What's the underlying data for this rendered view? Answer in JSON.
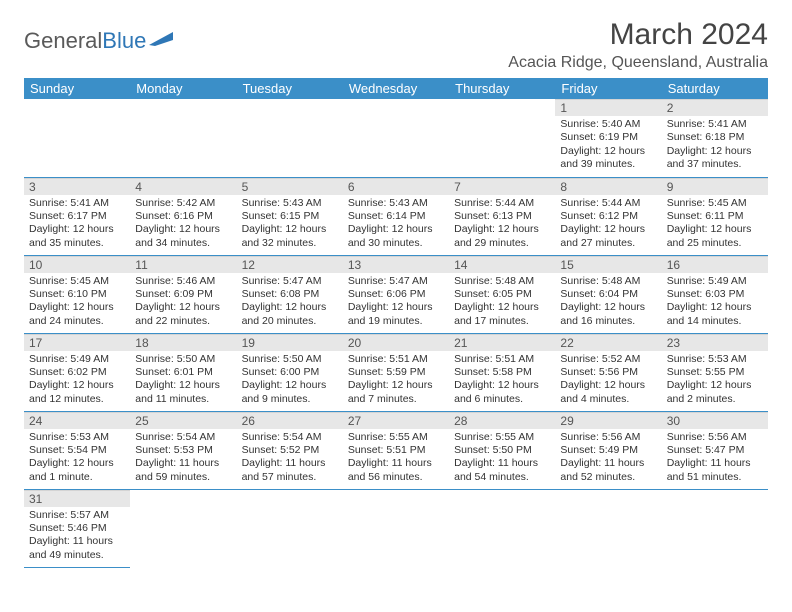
{
  "logo": {
    "text1": "General",
    "text2": "Blue"
  },
  "title": "March 2024",
  "location": "Acacia Ridge, Queensland, Australia",
  "colors": {
    "header_bg": "#3b8fc8",
    "header_fg": "#ffffff",
    "daynum_bg": "#e7e7e7",
    "row_border": "#3b8fc8",
    "logo_gray": "#5a5a5a",
    "logo_blue": "#2f77b6",
    "text": "#333333"
  },
  "day_headers": [
    "Sunday",
    "Monday",
    "Tuesday",
    "Wednesday",
    "Thursday",
    "Friday",
    "Saturday"
  ],
  "weeks": [
    [
      null,
      null,
      null,
      null,
      null,
      {
        "n": "1",
        "sunrise": "5:40 AM",
        "sunset": "6:19 PM",
        "daylight": "12 hours and 39 minutes."
      },
      {
        "n": "2",
        "sunrise": "5:41 AM",
        "sunset": "6:18 PM",
        "daylight": "12 hours and 37 minutes."
      }
    ],
    [
      {
        "n": "3",
        "sunrise": "5:41 AM",
        "sunset": "6:17 PM",
        "daylight": "12 hours and 35 minutes."
      },
      {
        "n": "4",
        "sunrise": "5:42 AM",
        "sunset": "6:16 PM",
        "daylight": "12 hours and 34 minutes."
      },
      {
        "n": "5",
        "sunrise": "5:43 AM",
        "sunset": "6:15 PM",
        "daylight": "12 hours and 32 minutes."
      },
      {
        "n": "6",
        "sunrise": "5:43 AM",
        "sunset": "6:14 PM",
        "daylight": "12 hours and 30 minutes."
      },
      {
        "n": "7",
        "sunrise": "5:44 AM",
        "sunset": "6:13 PM",
        "daylight": "12 hours and 29 minutes."
      },
      {
        "n": "8",
        "sunrise": "5:44 AM",
        "sunset": "6:12 PM",
        "daylight": "12 hours and 27 minutes."
      },
      {
        "n": "9",
        "sunrise": "5:45 AM",
        "sunset": "6:11 PM",
        "daylight": "12 hours and 25 minutes."
      }
    ],
    [
      {
        "n": "10",
        "sunrise": "5:45 AM",
        "sunset": "6:10 PM",
        "daylight": "12 hours and 24 minutes."
      },
      {
        "n": "11",
        "sunrise": "5:46 AM",
        "sunset": "6:09 PM",
        "daylight": "12 hours and 22 minutes."
      },
      {
        "n": "12",
        "sunrise": "5:47 AM",
        "sunset": "6:08 PM",
        "daylight": "12 hours and 20 minutes."
      },
      {
        "n": "13",
        "sunrise": "5:47 AM",
        "sunset": "6:06 PM",
        "daylight": "12 hours and 19 minutes."
      },
      {
        "n": "14",
        "sunrise": "5:48 AM",
        "sunset": "6:05 PM",
        "daylight": "12 hours and 17 minutes."
      },
      {
        "n": "15",
        "sunrise": "5:48 AM",
        "sunset": "6:04 PM",
        "daylight": "12 hours and 16 minutes."
      },
      {
        "n": "16",
        "sunrise": "5:49 AM",
        "sunset": "6:03 PM",
        "daylight": "12 hours and 14 minutes."
      }
    ],
    [
      {
        "n": "17",
        "sunrise": "5:49 AM",
        "sunset": "6:02 PM",
        "daylight": "12 hours and 12 minutes."
      },
      {
        "n": "18",
        "sunrise": "5:50 AM",
        "sunset": "6:01 PM",
        "daylight": "12 hours and 11 minutes."
      },
      {
        "n": "19",
        "sunrise": "5:50 AM",
        "sunset": "6:00 PM",
        "daylight": "12 hours and 9 minutes."
      },
      {
        "n": "20",
        "sunrise": "5:51 AM",
        "sunset": "5:59 PM",
        "daylight": "12 hours and 7 minutes."
      },
      {
        "n": "21",
        "sunrise": "5:51 AM",
        "sunset": "5:58 PM",
        "daylight": "12 hours and 6 minutes."
      },
      {
        "n": "22",
        "sunrise": "5:52 AM",
        "sunset": "5:56 PM",
        "daylight": "12 hours and 4 minutes."
      },
      {
        "n": "23",
        "sunrise": "5:53 AM",
        "sunset": "5:55 PM",
        "daylight": "12 hours and 2 minutes."
      }
    ],
    [
      {
        "n": "24",
        "sunrise": "5:53 AM",
        "sunset": "5:54 PM",
        "daylight": "12 hours and 1 minute."
      },
      {
        "n": "25",
        "sunrise": "5:54 AM",
        "sunset": "5:53 PM",
        "daylight": "11 hours and 59 minutes."
      },
      {
        "n": "26",
        "sunrise": "5:54 AM",
        "sunset": "5:52 PM",
        "daylight": "11 hours and 57 minutes."
      },
      {
        "n": "27",
        "sunrise": "5:55 AM",
        "sunset": "5:51 PM",
        "daylight": "11 hours and 56 minutes."
      },
      {
        "n": "28",
        "sunrise": "5:55 AM",
        "sunset": "5:50 PM",
        "daylight": "11 hours and 54 minutes."
      },
      {
        "n": "29",
        "sunrise": "5:56 AM",
        "sunset": "5:49 PM",
        "daylight": "11 hours and 52 minutes."
      },
      {
        "n": "30",
        "sunrise": "5:56 AM",
        "sunset": "5:47 PM",
        "daylight": "11 hours and 51 minutes."
      }
    ],
    [
      {
        "n": "31",
        "sunrise": "5:57 AM",
        "sunset": "5:46 PM",
        "daylight": "11 hours and 49 minutes."
      },
      null,
      null,
      null,
      null,
      null,
      null
    ]
  ],
  "labels": {
    "sunrise": "Sunrise: ",
    "sunset": "Sunset: ",
    "daylight": "Daylight: "
  }
}
